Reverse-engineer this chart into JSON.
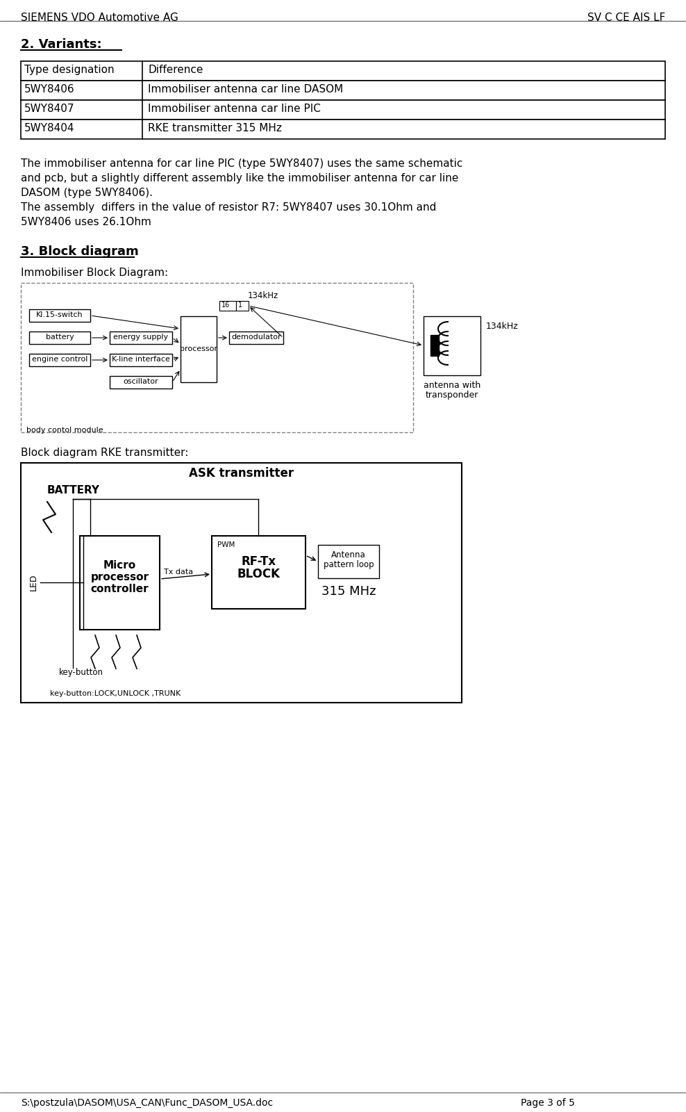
{
  "header_left": "SIEMENS VDO Automotive AG",
  "header_right": "SV C CE AIS LF",
  "footer_left": "S:\\postzula\\DASOM\\USA_CAN\\Func_DASOM_USA.doc",
  "footer_right": "Page 3 of 5",
  "section2_title": "2. Variants:",
  "table_headers": [
    "Type designation",
    "Difference"
  ],
  "table_rows": [
    [
      "5WY8406",
      "Immobiliser antenna car line DASOM"
    ],
    [
      "5WY8407",
      "Immobiliser antenna car line PIC"
    ],
    [
      "5WY8404",
      "RKE transmitter 315 MHz"
    ]
  ],
  "paragraph1": "The immobiliser antenna for car line PIC (type 5WY8407) uses the same schematic\nand pcb, but a slightly different assembly like the immobiliser antenna for car line\nDASOM (type 5WY8406).\nThe assembly  differs in the value of resistor R7: 5WY8407 uses 30.1Ohm and\n5WY8406 uses 26.1Ohm",
  "section3_title": "3. Block diagram",
  "immobiliser_subtitle": "Immobiliser Block Diagram:",
  "rke_subtitle": "Block diagram RKE transmitter:",
  "bg_color": "#ffffff",
  "text_color": "#000000",
  "table_border_color": "#000000",
  "diagram_border_color": "#808080",
  "box_color": "#ffffff"
}
